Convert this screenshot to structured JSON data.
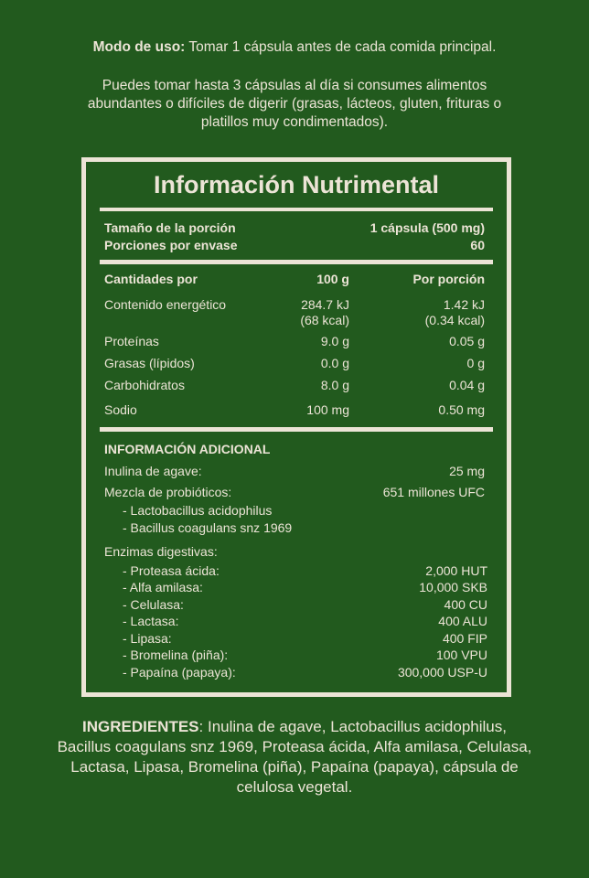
{
  "usage": {
    "label": "Modo de uso:",
    "text": " Tomar 1 cápsula antes de cada comida principal.",
    "note": "Puedes tomar hasta 3 cápsulas al día si consumes alimentos abundantes o difíciles de digerir (grasas, lácteos, gluten, frituras o platillos muy condimentados)."
  },
  "panel": {
    "title": "Información Nutrimental",
    "serving": [
      {
        "label": "Tamaño de la porción",
        "value": "1 cápsula (500 mg)"
      },
      {
        "label": "Porciones por envase",
        "value": "60"
      }
    ],
    "header": {
      "label": "Cantidades por",
      "col1": "100 g",
      "col2": "Por porción"
    },
    "nutrients": [
      {
        "label": "Contenido energético",
        "col1": "284.7 kJ",
        "col1b": "(68 kcal)",
        "col2": "1.42 kJ",
        "col2b": "(0.34 kcal)"
      },
      {
        "label": "Proteínas",
        "col1": "9.0 g",
        "col2": "0.05 g"
      },
      {
        "label": "Grasas (lípidos)",
        "col1": "0.0 g",
        "col2": "0 g"
      },
      {
        "label": "Carbohidratos",
        "col1": "8.0 g",
        "col2": "0.04 g"
      },
      {
        "label": "Sodio",
        "col1": "100 mg",
        "col2": "0.50 mg"
      }
    ],
    "additional": {
      "title": "INFORMACIÓN ADICIONAL",
      "inulin": {
        "label": "Inulina de agave:",
        "value": "25 mg"
      },
      "probiotics": {
        "label": "Mezcla de probióticos:",
        "value": "651 millones UFC",
        "items": [
          "- Lactobacillus acidophilus",
          "- Bacillus coagulans snz 1969"
        ]
      },
      "enzymes": {
        "label": "Enzimas digestivas:",
        "items": [
          {
            "label": "- Proteasa ácida:",
            "value": "2,000 HUT"
          },
          {
            "label": "- Alfa amilasa:",
            "value": "10,000 SKB"
          },
          {
            "label": "- Celulasa:",
            "value": "400 CU"
          },
          {
            "label": "- Lactasa:",
            "value": "400 ALU"
          },
          {
            "label": "- Lipasa:",
            "value": "400 FIP"
          },
          {
            "label": "- Bromelina (piña):",
            "value": "100 VPU"
          },
          {
            "label": "- Papaína (papaya):",
            "value": "300,000 USP-U"
          }
        ]
      }
    }
  },
  "ingredients": {
    "label": "INGREDIENTES",
    "text": ": Inulina de agave, Lactobacillus acidophilus, Bacillus coagulans snz 1969, Proteasa ácida, Alfa amilasa, Celulasa, Lactasa, Lipasa, Bromelina (piña), Papaína (papaya), cápsula de celulosa vegetal."
  },
  "colors": {
    "background": "#225a1e",
    "cream": "#ece4d6"
  }
}
